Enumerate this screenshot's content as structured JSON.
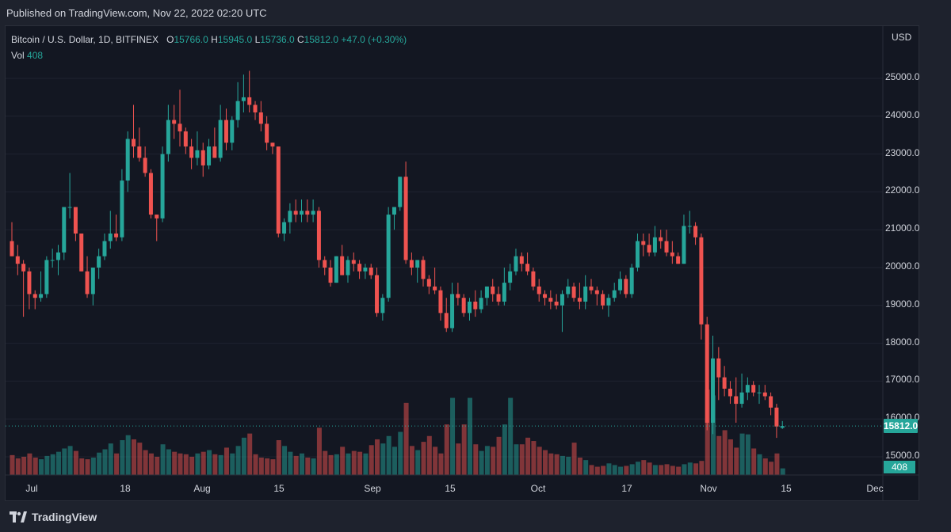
{
  "header": {
    "published": "Published on TradingView.com, Nov 22, 2022 02:20 UTC"
  },
  "legend": {
    "symbol": "Bitcoin / U.S. Dollar, 1D, BITFINEX",
    "o_label": "O",
    "o_value": "15766.0",
    "h_label": "H",
    "h_value": "15945.0",
    "l_label": "L",
    "l_value": "15736.0",
    "c_label": "C",
    "c_value": "15812.0",
    "change": "+47.0 (+0.30%)",
    "vol_label": "Vol",
    "vol_value": "408"
  },
  "axis": {
    "currency": "USD",
    "price_ticks": [
      "25000.0",
      "24000.0",
      "23000.0",
      "22000.0",
      "21000.0",
      "20000.0",
      "19000.0",
      "18000.0",
      "17000.0",
      "16000.0",
      "15000.0"
    ],
    "current_price": "15812.0",
    "current_volume": "408",
    "time_ticks": [
      "Jul",
      "18",
      "Aug",
      "15",
      "Sep",
      "15",
      "Oct",
      "17",
      "Nov",
      "15",
      "Dec"
    ]
  },
  "footer": {
    "brand": "TradingView"
  },
  "colors": {
    "up": "#26a69a",
    "down": "#ef5350",
    "background": "#131722"
  },
  "chart_data": {
    "type": "candlestick",
    "title": "Bitcoin / U.S. Dollar, 1D, BITFINEX",
    "ylabel": "USD",
    "ylim": [
      14500,
      25600
    ],
    "x_range": [
      "2022-06-28",
      "2022-12-02"
    ],
    "series": [
      {
        "o": 20700,
        "h": 21200,
        "l": 20300,
        "c": 20300
      },
      {
        "o": 20300,
        "h": 20600,
        "l": 19800,
        "c": 20100
      },
      {
        "o": 20100,
        "h": 20200,
        "l": 18700,
        "c": 19900
      },
      {
        "o": 19900,
        "h": 20000,
        "l": 18900,
        "c": 19300
      },
      {
        "o": 19300,
        "h": 19400,
        "l": 18900,
        "c": 19200
      },
      {
        "o": 19200,
        "h": 19900,
        "l": 19100,
        "c": 19300
      },
      {
        "o": 19300,
        "h": 20300,
        "l": 19200,
        "c": 20200
      },
      {
        "o": 20200,
        "h": 20500,
        "l": 20000,
        "c": 20200
      },
      {
        "o": 20200,
        "h": 20600,
        "l": 19800,
        "c": 20400
      },
      {
        "o": 20400,
        "h": 21600,
        "l": 20200,
        "c": 21600
      },
      {
        "o": 21600,
        "h": 22500,
        "l": 21300,
        "c": 21600
      },
      {
        "o": 21600,
        "h": 21600,
        "l": 20700,
        "c": 20900
      },
      {
        "o": 20900,
        "h": 20900,
        "l": 19900,
        "c": 19900
      },
      {
        "o": 19900,
        "h": 20300,
        "l": 19200,
        "c": 19300
      },
      {
        "o": 19300,
        "h": 20000,
        "l": 19000,
        "c": 20000
      },
      {
        "o": 20000,
        "h": 20500,
        "l": 19700,
        "c": 20300
      },
      {
        "o": 20300,
        "h": 20900,
        "l": 20200,
        "c": 20700
      },
      {
        "o": 20700,
        "h": 21500,
        "l": 20500,
        "c": 20900
      },
      {
        "o": 20900,
        "h": 21400,
        "l": 20700,
        "c": 20800
      },
      {
        "o": 20800,
        "h": 22600,
        "l": 20700,
        "c": 22300
      },
      {
        "o": 22300,
        "h": 23600,
        "l": 22000,
        "c": 23400
      },
      {
        "o": 23400,
        "h": 24300,
        "l": 22900,
        "c": 23200
      },
      {
        "o": 23200,
        "h": 23700,
        "l": 22800,
        "c": 22900
      },
      {
        "o": 22900,
        "h": 23200,
        "l": 22400,
        "c": 22500
      },
      {
        "o": 22500,
        "h": 22600,
        "l": 21300,
        "c": 21400
      },
      {
        "o": 21400,
        "h": 21400,
        "l": 20700,
        "c": 21300
      },
      {
        "o": 21300,
        "h": 23200,
        "l": 21200,
        "c": 23000
      },
      {
        "o": 23000,
        "h": 24300,
        "l": 22800,
        "c": 23900
      },
      {
        "o": 23900,
        "h": 24300,
        "l": 23400,
        "c": 23800
      },
      {
        "o": 23800,
        "h": 24700,
        "l": 23200,
        "c": 23600
      },
      {
        "o": 23600,
        "h": 23700,
        "l": 23000,
        "c": 23200
      },
      {
        "o": 23200,
        "h": 23400,
        "l": 22600,
        "c": 22900
      },
      {
        "o": 22900,
        "h": 23600,
        "l": 22700,
        "c": 23100
      },
      {
        "o": 23100,
        "h": 23300,
        "l": 22400,
        "c": 22700
      },
      {
        "o": 22700,
        "h": 23400,
        "l": 22600,
        "c": 23200
      },
      {
        "o": 23200,
        "h": 23700,
        "l": 22900,
        "c": 22900
      },
      {
        "o": 22900,
        "h": 24300,
        "l": 22800,
        "c": 23900
      },
      {
        "o": 23900,
        "h": 24200,
        "l": 23100,
        "c": 23300
      },
      {
        "o": 23300,
        "h": 24000,
        "l": 23100,
        "c": 23900
      },
      {
        "o": 23900,
        "h": 24900,
        "l": 23700,
        "c": 24400
      },
      {
        "o": 24400,
        "h": 25100,
        "l": 24100,
        "c": 24500
      },
      {
        "o": 24500,
        "h": 25200,
        "l": 24100,
        "c": 24300
      },
      {
        "o": 24300,
        "h": 24400,
        "l": 23900,
        "c": 24100
      },
      {
        "o": 24100,
        "h": 24400,
        "l": 23600,
        "c": 23800
      },
      {
        "o": 23800,
        "h": 24000,
        "l": 23100,
        "c": 23300
      },
      {
        "o": 23300,
        "h": 23300,
        "l": 23000,
        "c": 23200
      },
      {
        "o": 23200,
        "h": 23200,
        "l": 20800,
        "c": 20900
      },
      {
        "o": 20900,
        "h": 21300,
        "l": 20700,
        "c": 21200
      },
      {
        "o": 21200,
        "h": 21700,
        "l": 20900,
        "c": 21500
      },
      {
        "o": 21500,
        "h": 21800,
        "l": 21200,
        "c": 21400
      },
      {
        "o": 21400,
        "h": 21800,
        "l": 21200,
        "c": 21500
      },
      {
        "o": 21500,
        "h": 21800,
        "l": 21200,
        "c": 21400
      },
      {
        "o": 21400,
        "h": 21800,
        "l": 21200,
        "c": 21500
      },
      {
        "o": 21500,
        "h": 21600,
        "l": 20000,
        "c": 20200
      },
      {
        "o": 20200,
        "h": 20300,
        "l": 19800,
        "c": 20000
      },
      {
        "o": 20000,
        "h": 20200,
        "l": 19500,
        "c": 19600
      },
      {
        "o": 19600,
        "h": 20300,
        "l": 19600,
        "c": 20300
      },
      {
        "o": 20300,
        "h": 20600,
        "l": 19800,
        "c": 19800
      },
      {
        "o": 19800,
        "h": 20300,
        "l": 19600,
        "c": 20200
      },
      {
        "o": 20200,
        "h": 20400,
        "l": 19900,
        "c": 20100
      },
      {
        "o": 20100,
        "h": 20200,
        "l": 19700,
        "c": 19900
      },
      {
        "o": 19900,
        "h": 20100,
        "l": 19700,
        "c": 20000
      },
      {
        "o": 20000,
        "h": 20100,
        "l": 19700,
        "c": 19800
      },
      {
        "o": 19800,
        "h": 20000,
        "l": 18700,
        "c": 18800
      },
      {
        "o": 18800,
        "h": 19300,
        "l": 18600,
        "c": 19200
      },
      {
        "o": 19200,
        "h": 21600,
        "l": 19100,
        "c": 21400
      },
      {
        "o": 21400,
        "h": 21600,
        "l": 21000,
        "c": 21600
      },
      {
        "o": 21600,
        "h": 22400,
        "l": 21500,
        "c": 22400
      },
      {
        "o": 22400,
        "h": 22800,
        "l": 20100,
        "c": 20200
      },
      {
        "o": 20200,
        "h": 20400,
        "l": 19800,
        "c": 20000
      },
      {
        "o": 20000,
        "h": 20200,
        "l": 19600,
        "c": 20200
      },
      {
        "o": 20200,
        "h": 20300,
        "l": 19500,
        "c": 19700
      },
      {
        "o": 19700,
        "h": 19800,
        "l": 19300,
        "c": 19500
      },
      {
        "o": 19500,
        "h": 20000,
        "l": 19300,
        "c": 19400
      },
      {
        "o": 19400,
        "h": 19500,
        "l": 18600,
        "c": 18800
      },
      {
        "o": 18800,
        "h": 19200,
        "l": 18300,
        "c": 18400
      },
      {
        "o": 18400,
        "h": 19600,
        "l": 18300,
        "c": 19300
      },
      {
        "o": 19300,
        "h": 19600,
        "l": 19000,
        "c": 19200
      },
      {
        "o": 19200,
        "h": 19300,
        "l": 18700,
        "c": 18800
      },
      {
        "o": 18800,
        "h": 19200,
        "l": 18600,
        "c": 19100
      },
      {
        "o": 19100,
        "h": 19400,
        "l": 18700,
        "c": 18900
      },
      {
        "o": 18900,
        "h": 19400,
        "l": 18800,
        "c": 19200
      },
      {
        "o": 19200,
        "h": 19500,
        "l": 19000,
        "c": 19500
      },
      {
        "o": 19500,
        "h": 19700,
        "l": 19100,
        "c": 19300
      },
      {
        "o": 19300,
        "h": 19500,
        "l": 19000,
        "c": 19100
      },
      {
        "o": 19100,
        "h": 20000,
        "l": 19000,
        "c": 19600
      },
      {
        "o": 19600,
        "h": 20100,
        "l": 19400,
        "c": 19900
      },
      {
        "o": 19900,
        "h": 20500,
        "l": 19800,
        "c": 20300
      },
      {
        "o": 20300,
        "h": 20400,
        "l": 19900,
        "c": 20100
      },
      {
        "o": 20100,
        "h": 20400,
        "l": 19800,
        "c": 19900
      },
      {
        "o": 19900,
        "h": 20000,
        "l": 19400,
        "c": 19500
      },
      {
        "o": 19500,
        "h": 19700,
        "l": 19100,
        "c": 19300
      },
      {
        "o": 19300,
        "h": 19400,
        "l": 19000,
        "c": 19200
      },
      {
        "o": 19200,
        "h": 19400,
        "l": 18900,
        "c": 19100
      },
      {
        "o": 19100,
        "h": 19300,
        "l": 18900,
        "c": 19000
      },
      {
        "o": 19000,
        "h": 19400,
        "l": 18300,
        "c": 19300
      },
      {
        "o": 19300,
        "h": 19700,
        "l": 19200,
        "c": 19500
      },
      {
        "o": 19500,
        "h": 19600,
        "l": 19100,
        "c": 19200
      },
      {
        "o": 19200,
        "h": 19600,
        "l": 18900,
        "c": 19100
      },
      {
        "o": 19100,
        "h": 19800,
        "l": 18900,
        "c": 19500
      },
      {
        "o": 19500,
        "h": 19700,
        "l": 19300,
        "c": 19400
      },
      {
        "o": 19400,
        "h": 19500,
        "l": 19000,
        "c": 19300
      },
      {
        "o": 19300,
        "h": 19400,
        "l": 18900,
        "c": 19000
      },
      {
        "o": 19000,
        "h": 19300,
        "l": 18700,
        "c": 19200
      },
      {
        "o": 19200,
        "h": 19600,
        "l": 19100,
        "c": 19400
      },
      {
        "o": 19400,
        "h": 19900,
        "l": 19300,
        "c": 19700
      },
      {
        "o": 19700,
        "h": 19800,
        "l": 19200,
        "c": 19300
      },
      {
        "o": 19300,
        "h": 20100,
        "l": 19200,
        "c": 20000
      },
      {
        "o": 20000,
        "h": 20900,
        "l": 19900,
        "c": 20700
      },
      {
        "o": 20700,
        "h": 20900,
        "l": 20300,
        "c": 20600
      },
      {
        "o": 20600,
        "h": 20900,
        "l": 20300,
        "c": 20400
      },
      {
        "o": 20400,
        "h": 21100,
        "l": 20300,
        "c": 20800
      },
      {
        "o": 20800,
        "h": 21000,
        "l": 20500,
        "c": 20700
      },
      {
        "o": 20700,
        "h": 21000,
        "l": 20300,
        "c": 20400
      },
      {
        "o": 20400,
        "h": 20700,
        "l": 20100,
        "c": 20300
      },
      {
        "o": 20300,
        "h": 20400,
        "l": 20100,
        "c": 20100
      },
      {
        "o": 20100,
        "h": 21400,
        "l": 20100,
        "c": 21100
      },
      {
        "o": 21100,
        "h": 21500,
        "l": 20900,
        "c": 21100
      },
      {
        "o": 21100,
        "h": 21200,
        "l": 20600,
        "c": 20800
      },
      {
        "o": 20800,
        "h": 20900,
        "l": 18100,
        "c": 18500
      },
      {
        "o": 18500,
        "h": 18700,
        "l": 15700,
        "c": 15900
      },
      {
        "o": 15900,
        "h": 18200,
        "l": 15600,
        "c": 17600
      },
      {
        "o": 17600,
        "h": 17900,
        "l": 16500,
        "c": 17100
      },
      {
        "o": 17100,
        "h": 17400,
        "l": 16600,
        "c": 16800
      },
      {
        "o": 16800,
        "h": 17000,
        "l": 16400,
        "c": 16600
      },
      {
        "o": 16600,
        "h": 17100,
        "l": 15900,
        "c": 16400
      },
      {
        "o": 16400,
        "h": 17200,
        "l": 16300,
        "c": 16700
      },
      {
        "o": 16700,
        "h": 17100,
        "l": 16500,
        "c": 16900
      },
      {
        "o": 16900,
        "h": 17000,
        "l": 16600,
        "c": 16700
      },
      {
        "o": 16700,
        "h": 16900,
        "l": 16400,
        "c": 16700
      },
      {
        "o": 16700,
        "h": 16900,
        "l": 16500,
        "c": 16600
      },
      {
        "o": 16600,
        "h": 16700,
        "l": 16100,
        "c": 16300
      },
      {
        "o": 16300,
        "h": 16400,
        "l": 15500,
        "c": 15800
      },
      {
        "o": 15766,
        "h": 15945,
        "l": 15736,
        "c": 15812
      }
    ],
    "volume": [
      2.4,
      2.0,
      2.2,
      2.6,
      2.1,
      1.9,
      2.3,
      2.5,
      2.8,
      3.2,
      3.5,
      2.9,
      2.0,
      1.9,
      2.1,
      2.7,
      3.1,
      3.8,
      2.6,
      4.2,
      4.8,
      4.3,
      3.9,
      3.0,
      2.6,
      2.2,
      3.7,
      3.1,
      2.8,
      2.6,
      2.5,
      2.2,
      2.6,
      2.8,
      3.0,
      2.5,
      2.4,
      3.3,
      2.6,
      3.5,
      4.5,
      5.0,
      2.5,
      2.1,
      2.0,
      1.9,
      4.2,
      3.5,
      2.8,
      2.3,
      2.6,
      2.1,
      2.0,
      5.7,
      2.9,
      2.4,
      2.5,
      3.4,
      2.6,
      2.9,
      2.8,
      2.6,
      3.6,
      4.3,
      3.8,
      4.7,
      3.4,
      5.2,
      8.7,
      3.5,
      3.0,
      4.0,
      4.7,
      3.4,
      2.6,
      6.1,
      9.3,
      3.8,
      6.1,
      9.3,
      3.7,
      2.9,
      3.5,
      3.4,
      4.6,
      6.1,
      9.3,
      3.7,
      3.7,
      4.5,
      4.1,
      3.4,
      3.0,
      2.6,
      2.5,
      2.3,
      2.2,
      3.9,
      2.1,
      1.8,
      1.2,
      1.0,
      1.1,
      1.4,
      1.2,
      1.0,
      1.1,
      1.3,
      1.6,
      1.8,
      1.5,
      1.2,
      1.2,
      1.3,
      1.1,
      1.0,
      1.3,
      1.5,
      1.4,
      1.7,
      10.3,
      9.6,
      4.7,
      5.4,
      4.3,
      3.3,
      5.0,
      4.9,
      3.2,
      2.5,
      2.0,
      1.6,
      2.6,
      0.8
    ]
  }
}
